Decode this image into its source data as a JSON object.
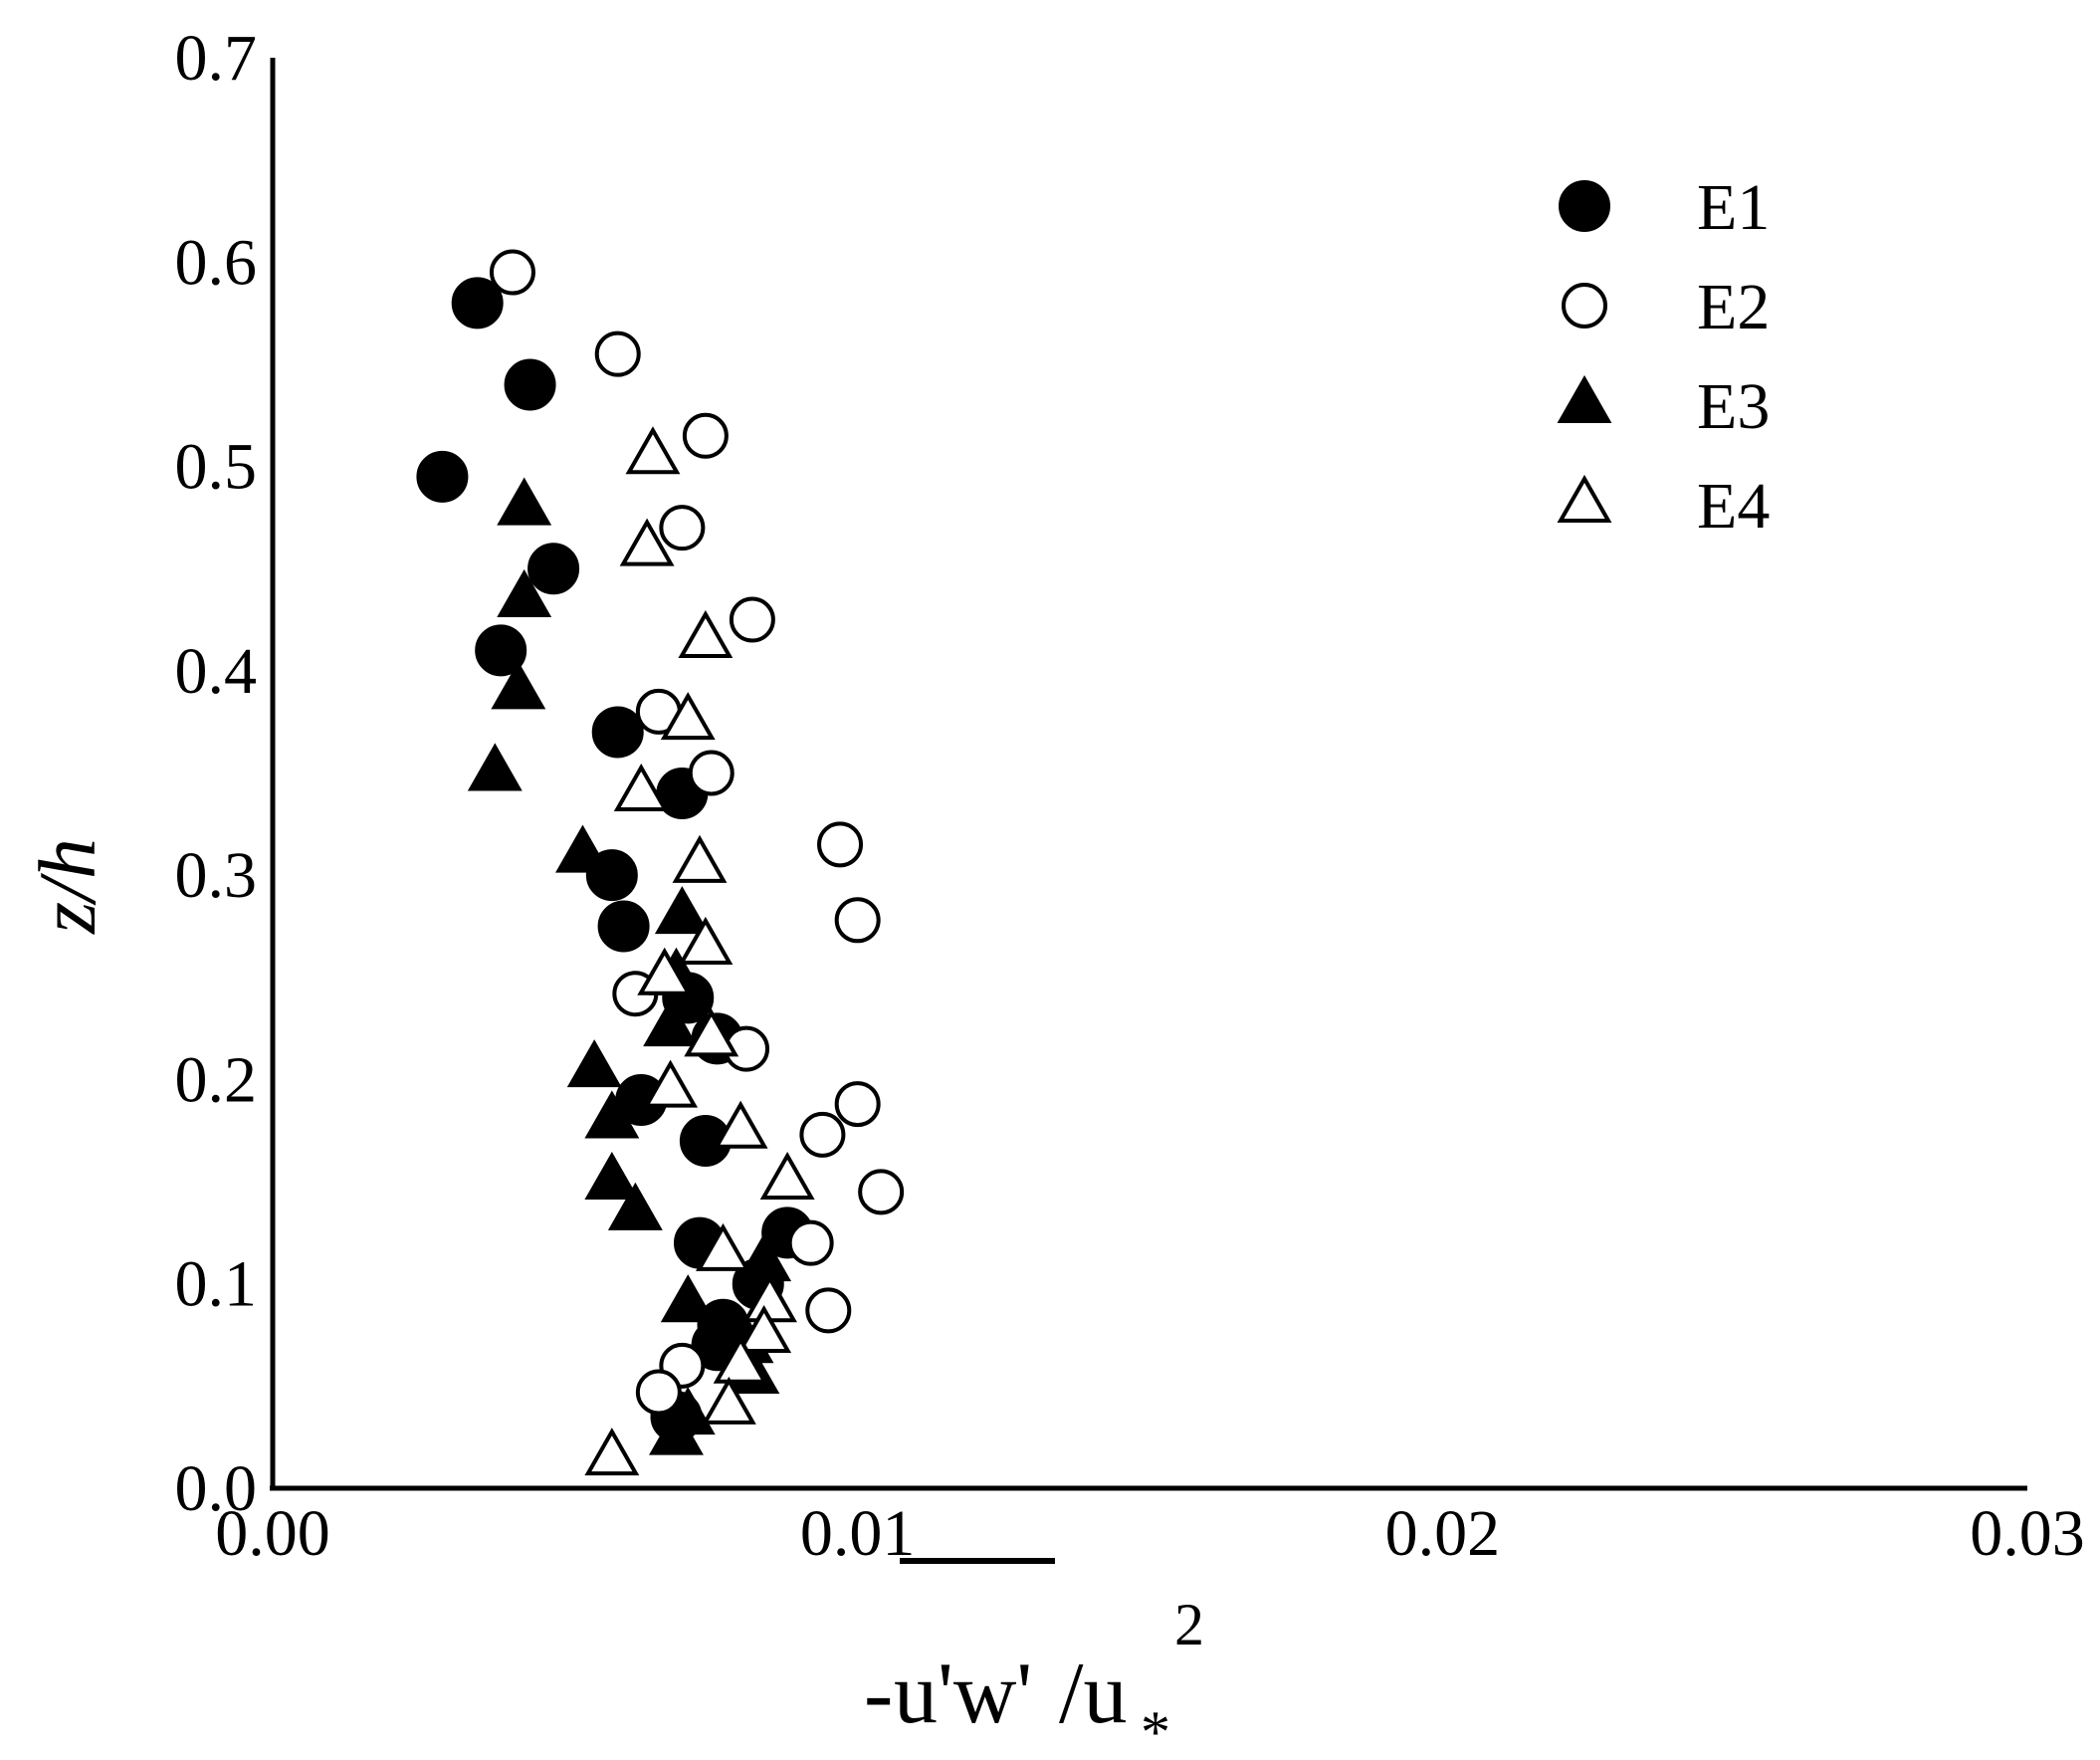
{
  "chart_data": {
    "type": "scatter",
    "xlabel": "-u'w'/u*²",
    "xlabel_parts": {
      "prefix": "-",
      "overlined": "u'w'",
      "slash": "/u",
      "subscript": "*",
      "superscript": "2"
    },
    "ylabel": "z/h",
    "xlim": [
      0,
      0.03
    ],
    "ylim": [
      0,
      0.7
    ],
    "xticks": [
      "0.00",
      "0.01",
      "0.02",
      "0.03"
    ],
    "yticks": [
      "0.0",
      "0.1",
      "0.2",
      "0.3",
      "0.4",
      "0.5",
      "0.6",
      "0.7"
    ],
    "grid": false,
    "legend_position": "top-right",
    "series": [
      {
        "name": "E1",
        "marker": "filled-circle",
        "color": "#000000",
        "x": [
          0.0035,
          0.0044,
          0.0029,
          0.0048,
          0.0039,
          0.0059,
          0.007,
          0.0058,
          0.006,
          0.0071,
          0.0076,
          0.0063,
          0.0074,
          0.0073,
          0.0088,
          0.0083,
          0.0077,
          0.0076,
          0.0069
        ],
        "y": [
          0.58,
          0.54,
          0.495,
          0.45,
          0.41,
          0.37,
          0.34,
          0.3,
          0.275,
          0.24,
          0.22,
          0.19,
          0.17,
          0.12,
          0.125,
          0.1,
          0.08,
          0.07,
          0.035
        ]
      },
      {
        "name": "E2",
        "marker": "open-circle",
        "color": "#000000",
        "x": [
          0.0041,
          0.0059,
          0.0074,
          0.007,
          0.0082,
          0.0066,
          0.0075,
          0.0097,
          0.01,
          0.0062,
          0.0081,
          0.01,
          0.0094,
          0.0104,
          0.0092,
          0.0095,
          0.007,
          0.0066
        ],
        "y": [
          0.595,
          0.555,
          0.515,
          0.47,
          0.425,
          0.38,
          0.35,
          0.315,
          0.278,
          0.242,
          0.215,
          0.188,
          0.173,
          0.145,
          0.12,
          0.087,
          0.06,
          0.047
        ]
      },
      {
        "name": "E3",
        "marker": "filled-triangle",
        "color": "#000000",
        "x": [
          0.0043,
          0.0043,
          0.0042,
          0.0038,
          0.0053,
          0.007,
          0.0069,
          0.0068,
          0.0055,
          0.0058,
          0.0058,
          0.0062,
          0.0084,
          0.0071,
          0.0081,
          0.0082,
          0.0071,
          0.0069
        ],
        "y": [
          0.48,
          0.435,
          0.39,
          0.35,
          0.31,
          0.28,
          0.25,
          0.225,
          0.205,
          0.18,
          0.15,
          0.135,
          0.11,
          0.09,
          0.07,
          0.055,
          0.035,
          0.025
        ]
      },
      {
        "name": "E4",
        "marker": "open-triangle",
        "color": "#000000",
        "x": [
          0.0065,
          0.0064,
          0.0074,
          0.0071,
          0.0063,
          0.0073,
          0.0074,
          0.0067,
          0.0075,
          0.0068,
          0.008,
          0.0088,
          0.0077,
          0.0085,
          0.0084,
          0.008,
          0.0078,
          0.0058
        ],
        "y": [
          0.505,
          0.46,
          0.415,
          0.375,
          0.34,
          0.305,
          0.265,
          0.25,
          0.22,
          0.195,
          0.175,
          0.15,
          0.115,
          0.09,
          0.075,
          0.06,
          0.04,
          0.015
        ]
      }
    ]
  }
}
